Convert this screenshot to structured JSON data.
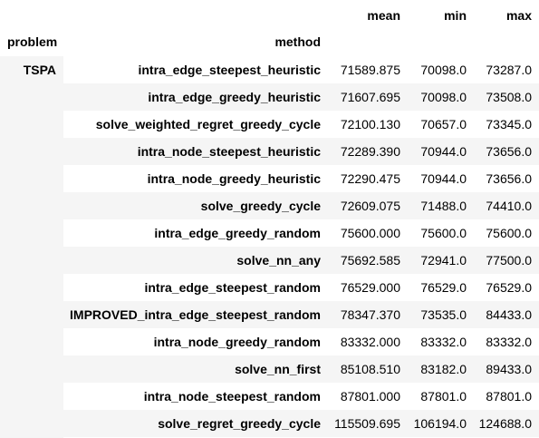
{
  "columns": {
    "mean": "mean",
    "min": "min",
    "max": "max"
  },
  "index_names": {
    "problem": "problem",
    "method": "method"
  },
  "problem_group": "TSPA",
  "rows": [
    {
      "method": "intra_edge_steepest_heuristic",
      "mean": "71589.875",
      "min": "70098.0",
      "max": "73287.0"
    },
    {
      "method": "intra_edge_greedy_heuristic",
      "mean": "71607.695",
      "min": "70098.0",
      "max": "73508.0"
    },
    {
      "method": "solve_weighted_regret_greedy_cycle",
      "mean": "72100.130",
      "min": "70657.0",
      "max": "73345.0"
    },
    {
      "method": "intra_node_steepest_heuristic",
      "mean": "72289.390",
      "min": "70944.0",
      "max": "73656.0"
    },
    {
      "method": "intra_node_greedy_heuristic",
      "mean": "72290.475",
      "min": "70944.0",
      "max": "73656.0"
    },
    {
      "method": "solve_greedy_cycle",
      "mean": "72609.075",
      "min": "71488.0",
      "max": "74410.0"
    },
    {
      "method": "intra_edge_greedy_random",
      "mean": "75600.000",
      "min": "75600.0",
      "max": "75600.0"
    },
    {
      "method": "solve_nn_any",
      "mean": "75692.585",
      "min": "72941.0",
      "max": "77500.0"
    },
    {
      "method": "intra_edge_steepest_random",
      "mean": "76529.000",
      "min": "76529.0",
      "max": "76529.0"
    },
    {
      "method": "IMPROVED_intra_edge_steepest_random",
      "mean": "78347.370",
      "min": "73535.0",
      "max": "84433.0"
    },
    {
      "method": "intra_node_greedy_random",
      "mean": "83332.000",
      "min": "83332.0",
      "max": "83332.0"
    },
    {
      "method": "solve_nn_first",
      "mean": "85108.510",
      "min": "83182.0",
      "max": "89433.0"
    },
    {
      "method": "intra_node_steepest_random",
      "mean": "87801.000",
      "min": "87801.0",
      "max": "87801.0"
    },
    {
      "method": "solve_regret_greedy_cycle",
      "mean": "115509.695",
      "min": "106194.0",
      "max": "124688.0"
    }
  ]
}
